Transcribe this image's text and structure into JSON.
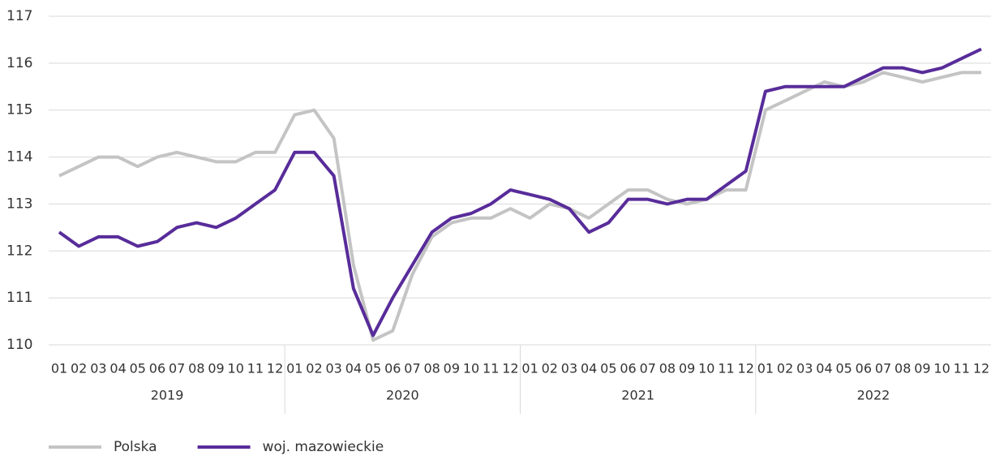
{
  "chart_data": {
    "type": "line",
    "categories": [
      "01",
      "02",
      "03",
      "04",
      "05",
      "06",
      "07",
      "08",
      "09",
      "10",
      "11",
      "12",
      "01",
      "02",
      "03",
      "04",
      "05",
      "06",
      "07",
      "08",
      "09",
      "10",
      "11",
      "12",
      "01",
      "02",
      "03",
      "04",
      "05",
      "06",
      "07",
      "08",
      "09",
      "10",
      "11",
      "12",
      "01",
      "02",
      "03",
      "04",
      "05",
      "06",
      "07",
      "08",
      "09",
      "10",
      "11",
      "12"
    ],
    "groups": [
      "2019",
      "2020",
      "2021",
      "2022"
    ],
    "series": [
      {
        "name": "Polska",
        "color": "#c4c4c4",
        "values": [
          113.6,
          113.8,
          114.0,
          114.0,
          113.8,
          114.0,
          114.1,
          114.0,
          113.9,
          113.9,
          114.1,
          114.1,
          114.9,
          115.0,
          114.4,
          111.7,
          110.1,
          110.3,
          111.5,
          112.3,
          112.6,
          112.7,
          112.7,
          112.9,
          112.7,
          113.0,
          112.9,
          112.7,
          113.0,
          113.3,
          113.3,
          113.1,
          113.0,
          113.1,
          113.3,
          113.3,
          115.0,
          115.2,
          115.4,
          115.6,
          115.5,
          115.6,
          115.8,
          115.7,
          115.6,
          115.7,
          115.8,
          115.8
        ]
      },
      {
        "name": "woj. mazowieckie",
        "color": "#582c9a",
        "values": [
          112.4,
          112.1,
          112.3,
          112.3,
          112.1,
          112.2,
          112.5,
          112.6,
          112.5,
          112.7,
          113.0,
          113.3,
          114.1,
          114.1,
          113.6,
          111.2,
          110.2,
          111.0,
          111.7,
          112.4,
          112.7,
          112.8,
          113.0,
          113.3,
          113.2,
          113.1,
          112.9,
          112.4,
          112.6,
          113.1,
          113.1,
          113.0,
          113.1,
          113.1,
          113.4,
          113.7,
          115.4,
          115.5,
          115.5,
          115.5,
          115.5,
          115.7,
          115.9,
          115.9,
          115.8,
          115.9,
          116.1,
          116.3
        ]
      }
    ],
    "ylim": [
      110,
      117
    ],
    "yticks": [
      110,
      111,
      112,
      113,
      114,
      115,
      116,
      117
    ],
    "grid": true,
    "legend": "bottom"
  }
}
